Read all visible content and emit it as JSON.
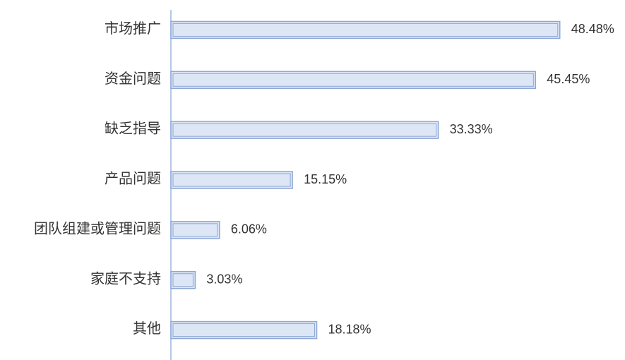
{
  "chart_data": {
    "type": "barh",
    "categories": [
      "市场推广",
      "资金问题",
      "缺乏指导",
      "产品问题",
      "团队组建或管理问题",
      "家庭不支持",
      "其他"
    ],
    "values": [
      48.48,
      45.45,
      33.33,
      15.15,
      6.06,
      3.03,
      18.18
    ],
    "value_labels": [
      "48.48%",
      "45.45%",
      "33.33%",
      "15.15%",
      "6.06%",
      "3.03%",
      "18.18%"
    ],
    "color": "#dde6f5",
    "xlim": [
      0,
      50
    ]
  }
}
